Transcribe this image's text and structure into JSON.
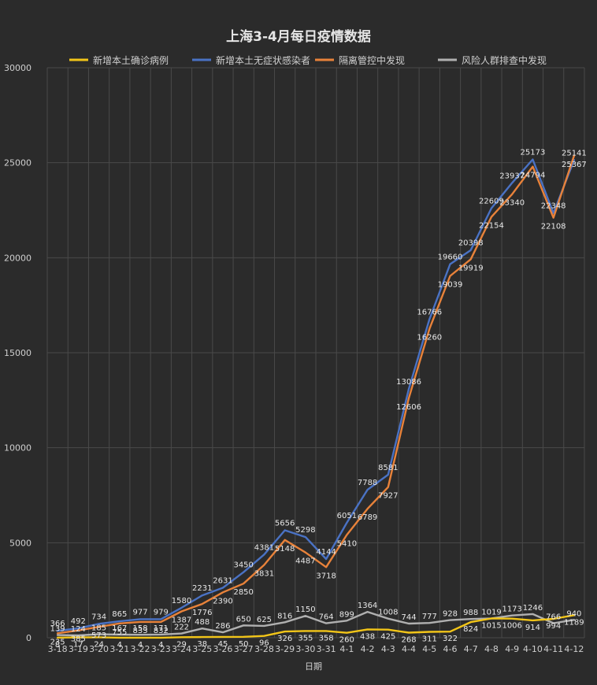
{
  "chart_data": {
    "type": "line",
    "title": "上海3-4月每日疫情数据",
    "xlabel": "日期",
    "ylabel": "",
    "ylim": [
      0,
      30000
    ],
    "yticks": [
      0,
      5000,
      10000,
      15000,
      20000,
      25000,
      30000
    ],
    "grid": true,
    "legend_position": "top",
    "categories": [
      "3-18",
      "3-19",
      "3-20",
      "3-21",
      "3-22",
      "3-23",
      "3-24",
      "3-25",
      "3-26",
      "3-27",
      "3-28",
      "3-29",
      "3-30",
      "3-31",
      "4-1",
      "4-2",
      "4-3",
      "4-4",
      "4-5",
      "4-6",
      "4-7",
      "4-8",
      "4-9",
      "4-10",
      "4-11",
      "4-12"
    ],
    "series": [
      {
        "name": "新增本土确诊病例",
        "color": "#f2c518",
        "values": [
          8,
          17,
          24,
          4,
          4,
          4,
          29,
          38,
          45,
          50,
          96,
          326,
          355,
          358,
          260,
          438,
          425,
          268,
          311,
          322,
          824,
          1015,
          1006,
          914,
          994,
          1189
        ]
      },
      {
        "name": "新增本土无症状感染者",
        "color": "#4a72c4",
        "values": [
          366,
          492,
          734,
          865,
          977,
          979,
          1580,
          2231,
          2631,
          3450,
          4381,
          5656,
          5298,
          4144,
          6051,
          7788,
          8581,
          13086,
          16766,
          19660,
          20398,
          22609,
          23937,
          25173,
          22348,
          25141
        ]
      },
      {
        "name": "隔离管控中发现",
        "color": "#e8823a",
        "values": [
          235,
          385,
          573,
          755,
          833,
          832,
          1387,
          1776,
          2390,
          2850,
          3831,
          5148,
          4487,
          3718,
          5410,
          6789,
          7927,
          12606,
          16260,
          19039,
          19919,
          22154,
          23340,
          24794,
          22108,
          25367
        ]
      },
      {
        "name": "风险人群排查中发现",
        "color": "#b0b0b0",
        "values": [
          139,
          124,
          185,
          167,
          158,
          171,
          222,
          488,
          286,
          650,
          625,
          816,
          1150,
          764,
          899,
          1364,
          1008,
          744,
          777,
          928,
          988,
          1019,
          1173,
          1246,
          766,
          940
        ]
      }
    ],
    "data_labels": [
      {
        "series": 0,
        "index": 0,
        "text": "8"
      },
      {
        "series": 0,
        "index": 1,
        "text": "17"
      },
      {
        "series": 0,
        "index": 2,
        "text": "24"
      },
      {
        "series": 0,
        "index": 3,
        "text": "4"
      },
      {
        "series": 0,
        "index": 4,
        "text": "4"
      },
      {
        "series": 0,
        "index": 5,
        "text": "4"
      },
      {
        "series": 0,
        "index": 6,
        "text": "29"
      },
      {
        "series": 0,
        "index": 7,
        "text": "38"
      },
      {
        "series": 0,
        "index": 8,
        "text": "45"
      },
      {
        "series": 0,
        "index": 9,
        "text": "50"
      },
      {
        "series": 0,
        "index": 10,
        "text": "96"
      },
      {
        "series": 0,
        "index": 11,
        "text": "326"
      },
      {
        "series": 0,
        "index": 12,
        "text": "355"
      },
      {
        "series": 0,
        "index": 13,
        "text": "358"
      },
      {
        "series": 0,
        "index": 14,
        "text": "260"
      },
      {
        "series": 0,
        "index": 15,
        "text": "438"
      },
      {
        "series": 0,
        "index": 16,
        "text": "425"
      },
      {
        "series": 0,
        "index": 17,
        "text": "268"
      },
      {
        "series": 0,
        "index": 18,
        "text": "311"
      },
      {
        "series": 0,
        "index": 19,
        "text": "322"
      },
      {
        "series": 0,
        "index": 20,
        "text": "824"
      },
      {
        "series": 0,
        "index": 21,
        "text": "1015"
      },
      {
        "series": 0,
        "index": 22,
        "text": "1006"
      },
      {
        "series": 0,
        "index": 23,
        "text": "914"
      },
      {
        "series": 0,
        "index": 24,
        "text": "994"
      },
      {
        "series": 0,
        "index": 25,
        "text": "1189"
      },
      {
        "series": 1,
        "index": 0,
        "text": "366"
      },
      {
        "series": 1,
        "index": 1,
        "text": "492"
      },
      {
        "series": 1,
        "index": 2,
        "text": "734"
      },
      {
        "series": 1,
        "index": 3,
        "text": "865"
      },
      {
        "series": 1,
        "index": 4,
        "text": "977"
      },
      {
        "series": 1,
        "index": 5,
        "text": "979"
      },
      {
        "series": 1,
        "index": 6,
        "text": "1580"
      },
      {
        "series": 1,
        "index": 7,
        "text": "2231"
      },
      {
        "series": 1,
        "index": 8,
        "text": "2631"
      },
      {
        "series": 1,
        "index": 9,
        "text": "3450"
      },
      {
        "series": 1,
        "index": 10,
        "text": "4381"
      },
      {
        "series": 1,
        "index": 11,
        "text": "5656"
      },
      {
        "series": 1,
        "index": 12,
        "text": "5298"
      },
      {
        "series": 1,
        "index": 13,
        "text": "4144"
      },
      {
        "series": 1,
        "index": 14,
        "text": "6051"
      },
      {
        "series": 1,
        "index": 15,
        "text": "7788"
      },
      {
        "series": 1,
        "index": 16,
        "text": "8581"
      },
      {
        "series": 1,
        "index": 17,
        "text": "13086"
      },
      {
        "series": 1,
        "index": 18,
        "text": "16766"
      },
      {
        "series": 1,
        "index": 19,
        "text": "19660"
      },
      {
        "series": 1,
        "index": 20,
        "text": "20398"
      },
      {
        "series": 1,
        "index": 21,
        "text": "22609"
      },
      {
        "series": 1,
        "index": 22,
        "text": "23937"
      },
      {
        "series": 1,
        "index": 23,
        "text": "25173"
      },
      {
        "series": 1,
        "index": 24,
        "text": "22348"
      },
      {
        "series": 1,
        "index": 25,
        "text": "25141"
      },
      {
        "series": 2,
        "index": 0,
        "text": "235"
      },
      {
        "series": 2,
        "index": 1,
        "text": "385"
      },
      {
        "series": 2,
        "index": 2,
        "text": "573"
      },
      {
        "series": 2,
        "index": 3,
        "text": "755"
      },
      {
        "series": 2,
        "index": 4,
        "text": "833"
      },
      {
        "series": 2,
        "index": 5,
        "text": "832"
      },
      {
        "series": 2,
        "index": 6,
        "text": "1387"
      },
      {
        "series": 2,
        "index": 7,
        "text": "1776"
      },
      {
        "series": 2,
        "index": 8,
        "text": "2390"
      },
      {
        "series": 2,
        "index": 9,
        "text": "2850"
      },
      {
        "series": 2,
        "index": 10,
        "text": "3831"
      },
      {
        "series": 2,
        "index": 11,
        "text": "5148"
      },
      {
        "series": 2,
        "index": 12,
        "text": "4487"
      },
      {
        "series": 2,
        "index": 13,
        "text": "3718"
      },
      {
        "series": 2,
        "index": 14,
        "text": "5410"
      },
      {
        "series": 2,
        "index": 15,
        "text": "6789"
      },
      {
        "series": 2,
        "index": 16,
        "text": "7927"
      },
      {
        "series": 2,
        "index": 17,
        "text": "12606"
      },
      {
        "series": 2,
        "index": 18,
        "text": "16260"
      },
      {
        "series": 2,
        "index": 19,
        "text": "19039"
      },
      {
        "series": 2,
        "index": 20,
        "text": "19919"
      },
      {
        "series": 2,
        "index": 21,
        "text": "22154"
      },
      {
        "series": 2,
        "index": 22,
        "text": "23340"
      },
      {
        "series": 2,
        "index": 23,
        "text": "24794"
      },
      {
        "series": 2,
        "index": 24,
        "text": "22108"
      },
      {
        "series": 2,
        "index": 25,
        "text": "25367"
      },
      {
        "series": 3,
        "index": 0,
        "text": "139"
      },
      {
        "series": 3,
        "index": 1,
        "text": "124"
      },
      {
        "series": 3,
        "index": 2,
        "text": "185"
      },
      {
        "series": 3,
        "index": 3,
        "text": "167"
      },
      {
        "series": 3,
        "index": 4,
        "text": "158"
      },
      {
        "series": 3,
        "index": 5,
        "text": "171"
      },
      {
        "series": 3,
        "index": 6,
        "text": "222"
      },
      {
        "series": 3,
        "index": 7,
        "text": "488"
      },
      {
        "series": 3,
        "index": 8,
        "text": "286"
      },
      {
        "series": 3,
        "index": 9,
        "text": "650"
      },
      {
        "series": 3,
        "index": 10,
        "text": "625"
      },
      {
        "series": 3,
        "index": 11,
        "text": "816"
      },
      {
        "series": 3,
        "index": 12,
        "text": "1150"
      },
      {
        "series": 3,
        "index": 13,
        "text": "764"
      },
      {
        "series": 3,
        "index": 14,
        "text": "899"
      },
      {
        "series": 3,
        "index": 15,
        "text": "1364"
      },
      {
        "series": 3,
        "index": 16,
        "text": "1008"
      },
      {
        "series": 3,
        "index": 17,
        "text": "744"
      },
      {
        "series": 3,
        "index": 18,
        "text": "777"
      },
      {
        "series": 3,
        "index": 19,
        "text": "928"
      },
      {
        "series": 3,
        "index": 20,
        "text": "988"
      },
      {
        "series": 3,
        "index": 21,
        "text": "1019"
      },
      {
        "series": 3,
        "index": 22,
        "text": "1173"
      },
      {
        "series": 3,
        "index": 23,
        "text": "1246"
      },
      {
        "series": 3,
        "index": 24,
        "text": "766"
      },
      {
        "series": 3,
        "index": 25,
        "text": "940"
      }
    ]
  }
}
